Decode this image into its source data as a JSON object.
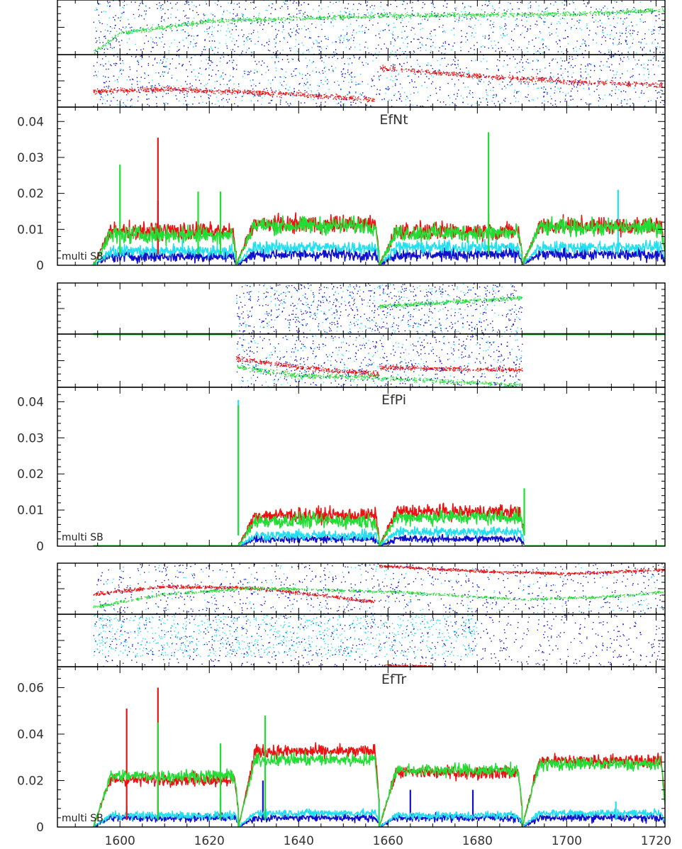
{
  "colors": {
    "red": "#ee1111",
    "blue": "#1010cc",
    "cyan": "#22e0f0",
    "green": "#22dd33"
  },
  "chart_data": [
    {
      "type": "scatter",
      "title": "",
      "panel": "upper scatter 1",
      "xlim": [
        1586,
        1722
      ],
      "ylim": [
        0,
        1
      ],
      "yticks_labeled": false,
      "series": [
        {
          "color": "green",
          "trend": [
            [
              1594,
              0.05
            ],
            [
              1600,
              0.4
            ],
            [
              1620,
              0.62
            ],
            [
              1660,
              0.72
            ],
            [
              1700,
              0.75
            ],
            [
              1722,
              0.82
            ]
          ],
          "spread": 0.06,
          "count": 1200
        },
        {
          "color": "blue",
          "range": [
            1594,
            1722
          ],
          "band": [
            0.0,
            1.0
          ],
          "count": 900
        },
        {
          "color": "cyan",
          "range": [
            1594,
            1722
          ],
          "band": [
            0.0,
            1.0
          ],
          "count": 500
        }
      ]
    },
    {
      "type": "scatter",
      "title": "",
      "panel": "lower scatter 1",
      "xlim": [
        1586,
        1722
      ],
      "ylim": [
        0,
        1
      ],
      "yticks_labeled": false,
      "series": [
        {
          "color": "red",
          "trend": [
            [
              1594,
              0.3
            ],
            [
              1610,
              0.35
            ],
            [
              1640,
              0.25
            ],
            [
              1657,
              0.15
            ]
          ],
          "spread": 0.07,
          "count": 700
        },
        {
          "color": "red",
          "trend": [
            [
              1658,
              0.75
            ],
            [
              1680,
              0.6
            ],
            [
              1700,
              0.5
            ],
            [
              1722,
              0.42
            ]
          ],
          "spread": 0.07,
          "count": 600
        },
        {
          "color": "blue",
          "range": [
            1594,
            1722
          ],
          "band": [
            0.0,
            1.0
          ],
          "count": 900
        },
        {
          "color": "cyan",
          "range": [
            1594,
            1722
          ],
          "band": [
            0.0,
            1.0
          ],
          "count": 400
        }
      ]
    },
    {
      "type": "line",
      "title": "EfNt",
      "annotation": "multi SB",
      "xlim": [
        1586,
        1722
      ],
      "ylim": [
        0,
        0.044
      ],
      "yticks": [
        0,
        0.01,
        0.02,
        0.03,
        0.04
      ],
      "yticklabels": [
        "0",
        "0.01",
        "0.02",
        "0.03",
        "0.04"
      ],
      "segments": [
        [
          1594,
          1626
        ],
        [
          1626,
          1658
        ],
        [
          1658,
          1690
        ],
        [
          1690,
          1722
        ]
      ],
      "series": [
        {
          "color": "blue",
          "level": [
            0.0025,
            0.003,
            0.003,
            0.003
          ],
          "noise": 0.0025,
          "spikes": [
            [
              1608.5,
              0.018
            ]
          ]
        },
        {
          "color": "cyan",
          "level": [
            0.004,
            0.005,
            0.005,
            0.005
          ],
          "noise": 0.0025,
          "spikes": [
            [
              1614,
              0.009
            ],
            [
              1711.5,
              0.021
            ]
          ]
        },
        {
          "color": "red",
          "level": [
            0.0095,
            0.0115,
            0.0095,
            0.011
          ],
          "noise": 0.0035,
          "spikes": [
            [
              1608.5,
              0.0355
            ],
            [
              1682.5,
              0.0145
            ]
          ]
        },
        {
          "color": "green",
          "level": [
            0.0085,
            0.011,
            0.009,
            0.0105
          ],
          "noise": 0.0035,
          "spikes": [
            [
              1600,
              0.028
            ],
            [
              1617.5,
              0.0205
            ],
            [
              1622.5,
              0.0205
            ],
            [
              1682.5,
              0.037
            ]
          ]
        }
      ]
    },
    {
      "type": "scatter",
      "title": "",
      "panel": "upper scatter 2",
      "xlim": [
        1586,
        1722
      ],
      "ylim": [
        0,
        1
      ],
      "yticks_labeled": false,
      "baseline": {
        "color": "green",
        "range": [
          1594,
          1626
        ],
        "value": 0
      },
      "baseline2": {
        "color": "green",
        "range": [
          1690,
          1722
        ],
        "value": 0
      },
      "series": [
        {
          "color": "green",
          "trend": [
            [
              1658,
              0.55
            ],
            [
              1690,
              0.72
            ]
          ],
          "spread": 0.06,
          "count": 400
        },
        {
          "color": "blue",
          "range": [
            1626,
            1690
          ],
          "band": [
            0.0,
            1.0
          ],
          "count": 700
        },
        {
          "color": "cyan",
          "range": [
            1626,
            1690
          ],
          "band": [
            0.0,
            1.0
          ],
          "count": 300
        }
      ]
    },
    {
      "type": "scatter",
      "title": "",
      "panel": "lower scatter 2",
      "xlim": [
        1586,
        1722
      ],
      "ylim": [
        0,
        1
      ],
      "yticks_labeled": false,
      "baseline": {
        "color": "green",
        "range": [
          1594,
          1626
        ],
        "value": 1
      },
      "baseline2": {
        "color": "green",
        "range": [
          1690,
          1722
        ],
        "value": 1
      },
      "series": [
        {
          "color": "red",
          "trend": [
            [
              1626,
              0.55
            ],
            [
              1640,
              0.38
            ],
            [
              1658,
              0.25
            ]
          ],
          "spread": 0.07,
          "count": 350
        },
        {
          "color": "red",
          "trend": [
            [
              1658,
              0.38
            ],
            [
              1690,
              0.33
            ]
          ],
          "spread": 0.06,
          "count": 350
        },
        {
          "color": "green",
          "trend": [
            [
              1626,
              0.4
            ],
            [
              1640,
              0.22
            ],
            [
              1658,
              0.2
            ]
          ],
          "spread": 0.08,
          "count": 350
        },
        {
          "color": "green",
          "trend": [
            [
              1658,
              0.18
            ],
            [
              1690,
              0.05
            ]
          ],
          "spread": 0.06,
          "count": 250
        },
        {
          "color": "blue",
          "range": [
            1626,
            1690
          ],
          "band": [
            0.0,
            1.0
          ],
          "count": 600
        },
        {
          "color": "cyan",
          "range": [
            1626,
            1690
          ],
          "band": [
            0.0,
            1.0
          ],
          "count": 200
        }
      ]
    },
    {
      "type": "line",
      "title": "EfPi",
      "annotation": "multi SB",
      "xlim": [
        1586,
        1722
      ],
      "ylim": [
        0,
        0.044
      ],
      "yticks": [
        0,
        0.01,
        0.02,
        0.03,
        0.04
      ],
      "yticklabels": [
        "0",
        "0.01",
        "0.02",
        "0.03",
        "0.04"
      ],
      "segments": [
        [
          1626.5,
          1658
        ],
        [
          1658,
          1690.5
        ]
      ],
      "flat": [
        [
          1594,
          1626.5
        ],
        [
          1690.5,
          1722
        ]
      ],
      "series": [
        {
          "color": "blue",
          "level": [
            0.002,
            0.002
          ],
          "noise": 0.0015,
          "spikes": []
        },
        {
          "color": "cyan",
          "level": [
            0.003,
            0.004
          ],
          "noise": 0.002,
          "spikes": [
            [
              1626.5,
              0.0405
            ]
          ]
        },
        {
          "color": "red",
          "level": [
            0.0085,
            0.0095
          ],
          "noise": 0.003,
          "spikes": []
        },
        {
          "color": "green",
          "level": [
            0.007,
            0.008
          ],
          "noise": 0.003,
          "spikes": [
            [
              1626.5,
              0.039
            ],
            [
              1690.5,
              0.016
            ]
          ]
        }
      ]
    },
    {
      "type": "scatter",
      "title": "",
      "panel": "upper scatter 3",
      "xlim": [
        1586,
        1722
      ],
      "ylim": [
        0,
        1
      ],
      "yticks_labeled": false,
      "series": [
        {
          "color": "red",
          "trend": [
            [
              1594,
              0.4
            ],
            [
              1610,
              0.55
            ],
            [
              1630,
              0.52
            ],
            [
              1645,
              0.38
            ],
            [
              1657,
              0.25
            ]
          ],
          "spread": 0.05,
          "count": 700
        },
        {
          "color": "red",
          "trend": [
            [
              1658,
              0.95
            ],
            [
              1680,
              0.85
            ],
            [
              1700,
              0.8
            ],
            [
              1722,
              0.88
            ]
          ],
          "spread": 0.04,
          "count": 700
        },
        {
          "color": "green",
          "trend": [
            [
              1594,
              0.15
            ],
            [
              1610,
              0.4
            ],
            [
              1630,
              0.52
            ],
            [
              1660,
              0.45
            ],
            [
              1690,
              0.3
            ],
            [
              1710,
              0.35
            ],
            [
              1722,
              0.45
            ]
          ],
          "spread": 0.04,
          "count": 1000
        },
        {
          "color": "blue",
          "range": [
            1594,
            1722
          ],
          "band": [
            0.0,
            1.0
          ],
          "count": 800
        },
        {
          "color": "cyan",
          "range": [
            1594,
            1722
          ],
          "band": [
            0.0,
            1.0
          ],
          "count": 200
        }
      ]
    },
    {
      "type": "scatter",
      "title": "",
      "panel": "lower scatter 3",
      "xlim": [
        1586,
        1722
      ],
      "ylim": [
        0,
        1
      ],
      "yticks_labeled": false,
      "series": [
        {
          "color": "red",
          "trend": [
            [
              1659,
              0.04
            ],
            [
              1670,
              0.02
            ]
          ],
          "spread": 0.02,
          "count": 80
        },
        {
          "color": "blue",
          "range": [
            1594,
            1722
          ],
          "band": [
            0.0,
            1.0
          ],
          "count": 800
        },
        {
          "color": "cyan",
          "range": [
            1594,
            1680
          ],
          "band": [
            0.2,
            1.0
          ],
          "count": 900
        }
      ]
    },
    {
      "type": "line",
      "title": "EfTr",
      "annotation": "multi SB",
      "xlim": [
        1586,
        1722
      ],
      "ylim": [
        0,
        0.069
      ],
      "yticks": [
        0,
        0.02,
        0.04,
        0.06
      ],
      "yticklabels": [
        "0",
        "0.02",
        "0.04",
        "0.06"
      ],
      "xticks": [
        1600,
        1620,
        1640,
        1660,
        1680,
        1700,
        1720
      ],
      "xticklabels": [
        "1600",
        "1620",
        "1640",
        "1660",
        "1680",
        "1700",
        "1720"
      ],
      "segments": [
        [
          1594,
          1626.5
        ],
        [
          1626.5,
          1658
        ],
        [
          1658,
          1690
        ],
        [
          1690,
          1722
        ]
      ],
      "series": [
        {
          "color": "blue",
          "level": [
            0.004,
            0.004,
            0.004,
            0.004
          ],
          "noise": 0.0025,
          "spikes": [
            [
              1622.5,
              0.013
            ],
            [
              1632,
              0.02
            ],
            [
              1665,
              0.016
            ],
            [
              1679,
              0.016
            ]
          ]
        },
        {
          "color": "cyan",
          "level": [
            0.005,
            0.006,
            0.005,
            0.006
          ],
          "noise": 0.0025,
          "spikes": [
            [
              1601.5,
              0.009
            ],
            [
              1608.5,
              0.012
            ],
            [
              1658,
              0.012
            ],
            [
              1711,
              0.011
            ]
          ]
        },
        {
          "color": "red",
          "level": [
            0.0205,
            0.0325,
            0.0235,
            0.0285
          ],
          "noise": 0.004,
          "spikes": [
            [
              1601.5,
              0.051
            ],
            [
              1608.5,
              0.06
            ]
          ]
        },
        {
          "color": "green",
          "level": [
            0.022,
            0.029,
            0.0245,
            0.027
          ],
          "noise": 0.004,
          "spikes": [
            [
              1608.5,
              0.045
            ],
            [
              1632.5,
              0.048
            ],
            [
              1622.5,
              0.036
            ]
          ]
        }
      ]
    }
  ]
}
